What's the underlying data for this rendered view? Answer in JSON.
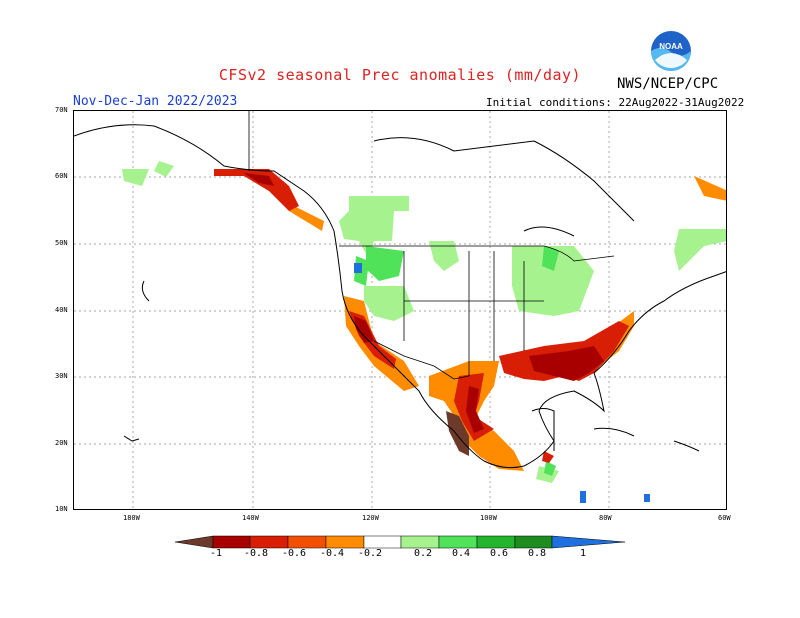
{
  "header": {
    "title": "CFSv2 seasonal Prec anomalies (mm/day)",
    "agency": "NWS/NCEP/CPC",
    "season": "Nov-Dec-Jan 2022/2023",
    "initial_conditions": "Initial conditions: 22Aug2022-31Aug2022",
    "logo_text": "NOAA"
  },
  "axes": {
    "lat_labels": [
      "70N",
      "60N",
      "50N",
      "40N",
      "30N",
      "20N",
      "10N"
    ],
    "lon_labels": [
      "180W",
      "140W",
      "120W",
      "100W",
      "80W",
      "60W"
    ]
  },
  "legend": {
    "labels": [
      "-1",
      "-0.8",
      "-0.6",
      "-0.4",
      "-0.2",
      "0.2",
      "0.4",
      "0.6",
      "0.8",
      "1"
    ],
    "colors": [
      "#6b3a2a",
      "#a80000",
      "#d81e05",
      "#f25000",
      "#ff8c00",
      "#ffffff",
      "#a6f28f",
      "#50e35a",
      "#23b52d",
      "#1e8c1e",
      "#1e6fe0"
    ]
  },
  "colors": {
    "title": "#dd2222",
    "season": "#1a3fcf",
    "dry_strong": "#a80000",
    "dry": "#d81e05",
    "dry_light": "#ff8c00",
    "wet_light": "#a6f28f",
    "wet": "#50e35a"
  }
}
